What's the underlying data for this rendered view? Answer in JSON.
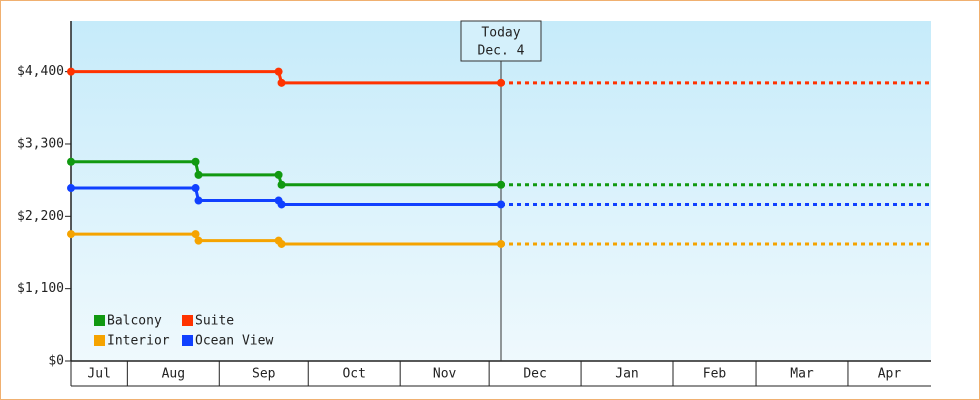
{
  "chart_data": {
    "type": "line",
    "ylim": [
      0,
      5170
    ],
    "yticks": [
      {
        "value": 0,
        "label": "$0"
      },
      {
        "value": 1100,
        "label": "$1,100"
      },
      {
        "value": 2200,
        "label": "$2,200"
      },
      {
        "value": 3300,
        "label": "$3,300"
      },
      {
        "value": 4400,
        "label": "$4,400"
      }
    ],
    "xlim": [
      0,
      290
    ],
    "xticks": [
      {
        "value": 0,
        "label": "Jul"
      },
      {
        "value": 19,
        "label": "Aug"
      },
      {
        "value": 50,
        "label": "Sep"
      },
      {
        "value": 80,
        "label": "Oct"
      },
      {
        "value": 111,
        "label": "Nov"
      },
      {
        "value": 141,
        "label": "Dec"
      },
      {
        "value": 172,
        "label": "Jan"
      },
      {
        "value": 203,
        "label": "Feb"
      },
      {
        "value": 231,
        "label": "Mar"
      },
      {
        "value": 262,
        "label": "Apr"
      }
    ],
    "annotation": {
      "x": 145,
      "lines": [
        "Today",
        "Dec. 4"
      ]
    },
    "legend": "bottom-left",
    "series": [
      {
        "name": "Balcony",
        "color": "#119911",
        "x": [
          0,
          42,
          43,
          70,
          71,
          145
        ],
        "values": [
          3030,
          3030,
          2830,
          2830,
          2680,
          2680
        ]
      },
      {
        "name": "Suite",
        "color": "#ff3300",
        "x": [
          0,
          70,
          71,
          145
        ],
        "values": [
          4400,
          4400,
          4230,
          4230
        ]
      },
      {
        "name": "Interior",
        "color": "#f5a300",
        "x": [
          0,
          42,
          43,
          70,
          71,
          145
        ],
        "values": [
          1930,
          1930,
          1830,
          1830,
          1780,
          1780
        ]
      },
      {
        "name": "Ocean View",
        "color": "#1040ff",
        "x": [
          0,
          42,
          43,
          70,
          71,
          145
        ],
        "values": [
          2630,
          2630,
          2440,
          2440,
          2380,
          2380
        ]
      }
    ]
  }
}
